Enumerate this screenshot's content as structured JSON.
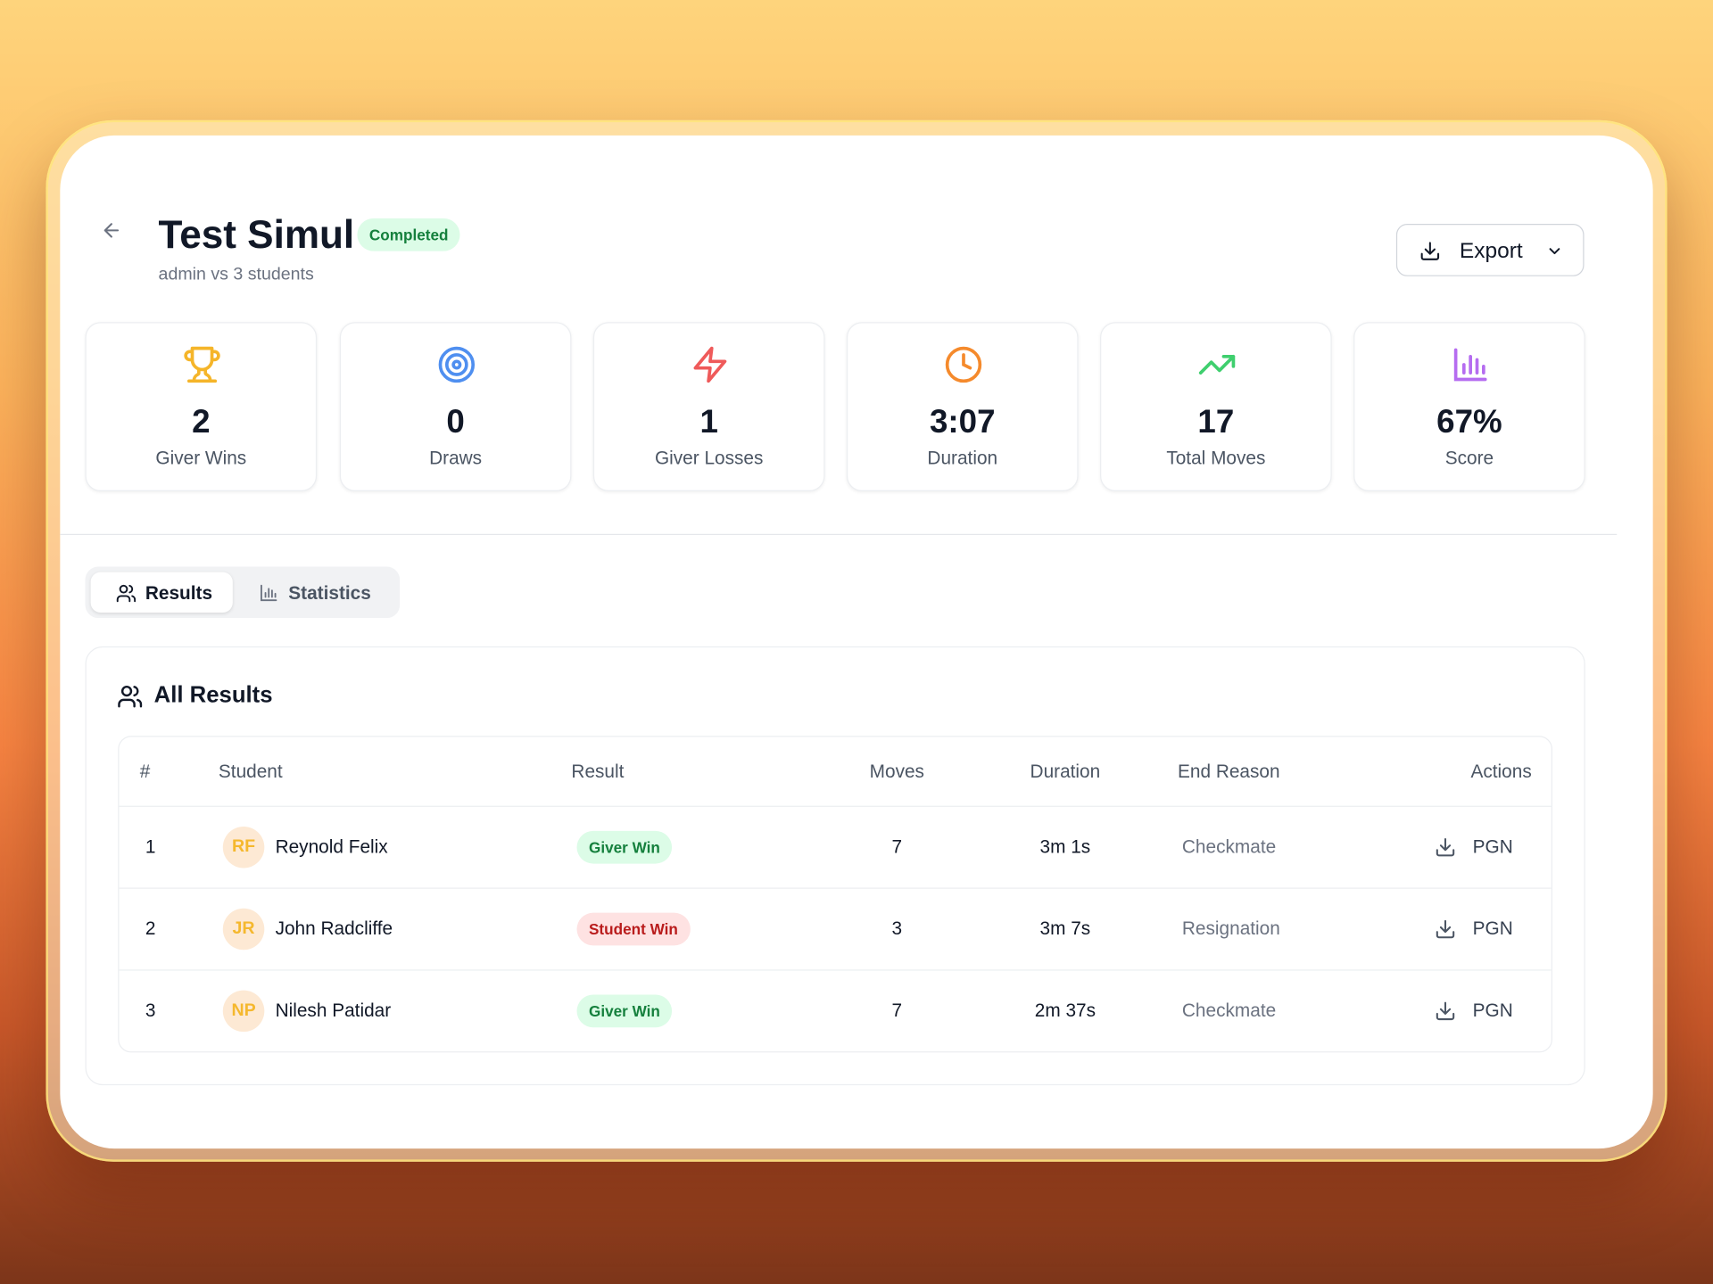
{
  "header": {
    "title": "Test Simul",
    "status": "Completed",
    "subtitle": "admin vs 3 students",
    "export": "Export"
  },
  "stats": [
    {
      "value": "2",
      "label": "Giver Wins"
    },
    {
      "value": "0",
      "label": "Draws"
    },
    {
      "value": "1",
      "label": "Giver Losses"
    },
    {
      "value": "3:07",
      "label": "Duration"
    },
    {
      "value": "17",
      "label": "Total Moves"
    },
    {
      "value": "67%",
      "label": "Score"
    }
  ],
  "tabs": [
    "Results",
    "Statistics"
  ],
  "results": {
    "title": "All Results",
    "columns": [
      "#",
      "Student",
      "Result",
      "Moves",
      "Duration",
      "End Reason",
      "Actions"
    ],
    "rows": [
      [
        "1",
        "RF",
        "Reynold Felix",
        "Giver Win",
        "7",
        "3m 1s",
        "Checkmate",
        "PGN"
      ],
      [
        "2",
        "JR",
        "John Radcliffe",
        "Student Win",
        "3",
        "3m 7s",
        "Resignation",
        "PGN"
      ],
      [
        "3",
        "NP",
        "Nilesh Patidar",
        "Giver Win",
        "7",
        "2m 37s",
        "Checkmate",
        "PGN"
      ]
    ]
  }
}
